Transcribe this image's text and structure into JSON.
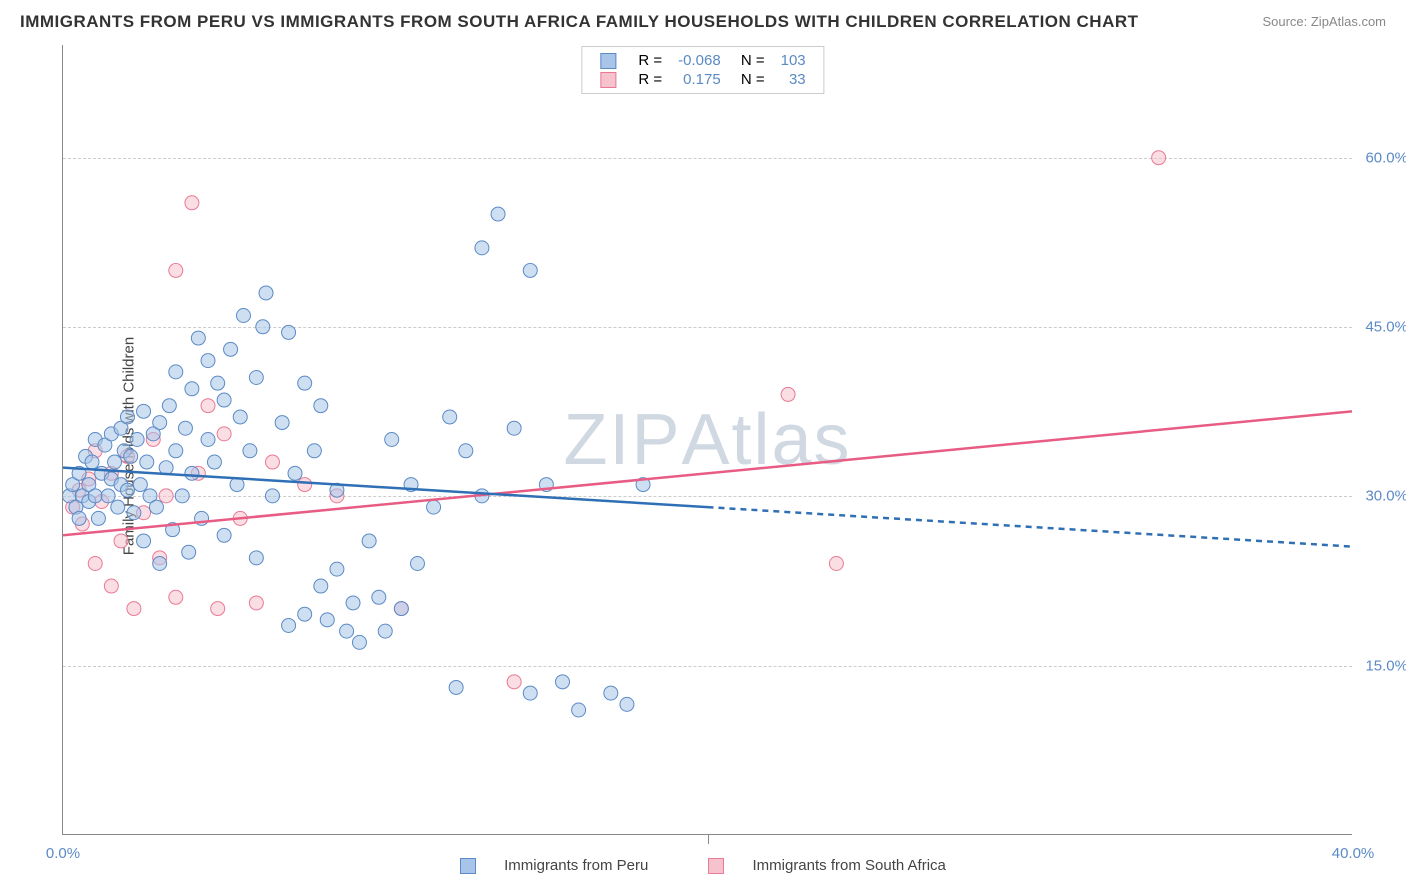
{
  "title": "IMMIGRANTS FROM PERU VS IMMIGRANTS FROM SOUTH AFRICA FAMILY HOUSEHOLDS WITH CHILDREN CORRELATION CHART",
  "source": "Source: ZipAtlas.com",
  "watermark": "ZIPAtlas",
  "ylabel": "Family Households with Children",
  "chart": {
    "type": "scatter",
    "xlim": [
      0,
      40
    ],
    "ylim": [
      0,
      70
    ],
    "yticks": [
      15,
      30,
      45,
      60
    ],
    "ytick_labels": [
      "15.0%",
      "30.0%",
      "45.0%",
      "60.0%"
    ],
    "xticks": [
      0,
      20,
      40
    ],
    "xtick_labels": [
      "0.0%",
      "",
      "40.0%"
    ],
    "grid_color": "#cccccc",
    "background_color": "#ffffff",
    "marker_radius": 7,
    "marker_opacity": 0.55,
    "line_width": 2.5
  },
  "series": {
    "a": {
      "label": "Immigrants from Peru",
      "fill": "#a8c4e8",
      "stroke": "#5b8ac5",
      "line_color": "#2f6fb5",
      "R": "-0.068",
      "N": "103",
      "line": {
        "x1": 0,
        "y1": 32.5,
        "x2_solid": 20,
        "y2_solid": 29,
        "x2": 40,
        "y2": 25.5
      },
      "points": [
        [
          0.2,
          30
        ],
        [
          0.3,
          31
        ],
        [
          0.4,
          29
        ],
        [
          0.5,
          32
        ],
        [
          0.5,
          28
        ],
        [
          0.6,
          30
        ],
        [
          0.7,
          33.5
        ],
        [
          0.8,
          31
        ],
        [
          0.8,
          29.5
        ],
        [
          0.9,
          33
        ],
        [
          1.0,
          30
        ],
        [
          1.0,
          35
        ],
        [
          1.1,
          28
        ],
        [
          1.2,
          32
        ],
        [
          1.3,
          34.5
        ],
        [
          1.4,
          30
        ],
        [
          1.5,
          35.5
        ],
        [
          1.5,
          31.5
        ],
        [
          1.6,
          33
        ],
        [
          1.7,
          29
        ],
        [
          1.8,
          36
        ],
        [
          1.8,
          31
        ],
        [
          1.9,
          34
        ],
        [
          2.0,
          30.5
        ],
        [
          2.0,
          37
        ],
        [
          2.1,
          33.5
        ],
        [
          2.2,
          28.5
        ],
        [
          2.3,
          35
        ],
        [
          2.4,
          31
        ],
        [
          2.5,
          37.5
        ],
        [
          2.5,
          26
        ],
        [
          2.6,
          33
        ],
        [
          2.7,
          30
        ],
        [
          2.8,
          35.5
        ],
        [
          2.9,
          29
        ],
        [
          3.0,
          36.5
        ],
        [
          3.0,
          24
        ],
        [
          3.2,
          32.5
        ],
        [
          3.3,
          38
        ],
        [
          3.4,
          27
        ],
        [
          3.5,
          34
        ],
        [
          3.5,
          41
        ],
        [
          3.7,
          30
        ],
        [
          3.8,
          36
        ],
        [
          3.9,
          25
        ],
        [
          4.0,
          39.5
        ],
        [
          4.0,
          32
        ],
        [
          4.2,
          44
        ],
        [
          4.3,
          28
        ],
        [
          4.5,
          35
        ],
        [
          4.5,
          42
        ],
        [
          4.7,
          33
        ],
        [
          4.8,
          40
        ],
        [
          5.0,
          38.5
        ],
        [
          5.0,
          26.5
        ],
        [
          5.2,
          43
        ],
        [
          5.4,
          31
        ],
        [
          5.5,
          37
        ],
        [
          5.6,
          46
        ],
        [
          5.8,
          34
        ],
        [
          6.0,
          24.5
        ],
        [
          6.0,
          40.5
        ],
        [
          6.2,
          45
        ],
        [
          6.3,
          48
        ],
        [
          6.5,
          30
        ],
        [
          6.8,
          36.5
        ],
        [
          7.0,
          18.5
        ],
        [
          7.0,
          44.5
        ],
        [
          7.2,
          32
        ],
        [
          7.5,
          19.5
        ],
        [
          7.5,
          40
        ],
        [
          7.8,
          34
        ],
        [
          8.0,
          22
        ],
        [
          8.0,
          38
        ],
        [
          8.2,
          19
        ],
        [
          8.5,
          23.5
        ],
        [
          8.5,
          30.5
        ],
        [
          8.8,
          18
        ],
        [
          9.0,
          20.5
        ],
        [
          9.2,
          17
        ],
        [
          9.5,
          26
        ],
        [
          9.8,
          21
        ],
        [
          10.0,
          18
        ],
        [
          10.2,
          35
        ],
        [
          10.5,
          20
        ],
        [
          10.8,
          31
        ],
        [
          11.0,
          24
        ],
        [
          11.5,
          29
        ],
        [
          12.0,
          37
        ],
        [
          12.2,
          13
        ],
        [
          12.5,
          34
        ],
        [
          13.0,
          52
        ],
        [
          13.0,
          30
        ],
        [
          13.5,
          55
        ],
        [
          14.0,
          36
        ],
        [
          14.5,
          50
        ],
        [
          14.5,
          12.5
        ],
        [
          15.0,
          31
        ],
        [
          15.5,
          13.5
        ],
        [
          16.0,
          11
        ],
        [
          17.0,
          12.5
        ],
        [
          17.5,
          11.5
        ],
        [
          18.0,
          31
        ]
      ]
    },
    "b": {
      "label": "Immigrants from South Africa",
      "fill": "#f5c2ce",
      "stroke": "#e87a94",
      "line_color": "#e85c84",
      "R": "0.175",
      "N": "33",
      "line": {
        "x1": 0,
        "y1": 26.5,
        "x2_solid": 40,
        "y2_solid": 37.5,
        "x2": 40,
        "y2": 37.5
      },
      "points": [
        [
          0.3,
          29
        ],
        [
          0.5,
          30.5
        ],
        [
          0.6,
          27.5
        ],
        [
          0.8,
          31.5
        ],
        [
          1.0,
          34
        ],
        [
          1.0,
          24
        ],
        [
          1.2,
          29.5
        ],
        [
          1.5,
          32
        ],
        [
          1.5,
          22
        ],
        [
          1.8,
          26
        ],
        [
          2.0,
          33.5
        ],
        [
          2.2,
          20
        ],
        [
          2.5,
          28.5
        ],
        [
          2.8,
          35
        ],
        [
          3.0,
          24.5
        ],
        [
          3.2,
          30
        ],
        [
          3.5,
          50
        ],
        [
          3.5,
          21
        ],
        [
          4.0,
          56
        ],
        [
          4.2,
          32
        ],
        [
          4.5,
          38
        ],
        [
          4.8,
          20
        ],
        [
          5.0,
          35.5
        ],
        [
          5.5,
          28
        ],
        [
          6.0,
          20.5
        ],
        [
          6.5,
          33
        ],
        [
          7.5,
          31
        ],
        [
          8.5,
          30
        ],
        [
          10.5,
          20
        ],
        [
          14.0,
          13.5
        ],
        [
          22.5,
          39
        ],
        [
          24.0,
          24
        ],
        [
          34.0,
          60
        ]
      ]
    }
  }
}
